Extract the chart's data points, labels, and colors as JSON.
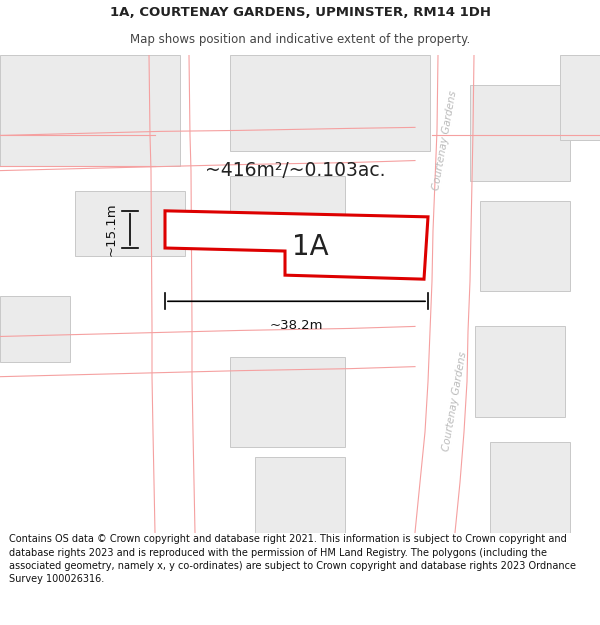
{
  "title_line1": "1A, COURTENAY GARDENS, UPMINSTER, RM14 1DH",
  "title_line2": "Map shows position and indicative extent of the property.",
  "footer_text": "Contains OS data © Crown copyright and database right 2021. This information is subject to Crown copyright and database rights 2023 and is reproduced with the permission of HM Land Registry. The polygons (including the associated geometry, namely x, y co-ordinates) are subject to Crown copyright and database rights 2023 Ordnance Survey 100026316.",
  "map_bg": "#ffffff",
  "block_fill": "#ebebeb",
  "block_stroke": "#c8c8c8",
  "road_line_color": "#f5a0a0",
  "target_fill": "#ffffff",
  "target_stroke": "#dd0000",
  "area_label": "~416m²/~0.103ac.",
  "plot_label": "1A",
  "dim_width": "~38.2m",
  "dim_height": "~15.1m",
  "street_label": "Courtenay Gardens",
  "title_color": "#222222",
  "subtitle_color": "#444444",
  "footer_color": "#111111",
  "street_text_color": "#bbbbbb",
  "dim_color": "#111111"
}
